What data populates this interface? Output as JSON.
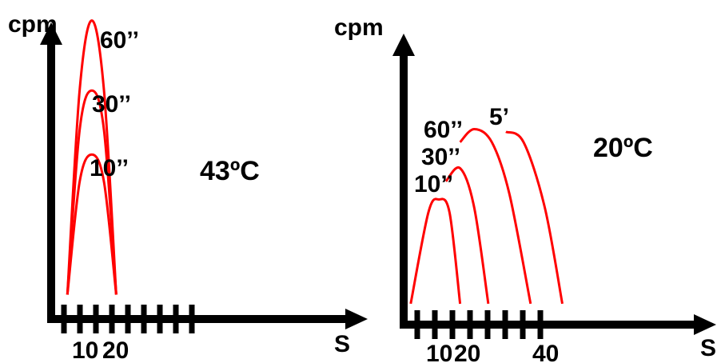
{
  "colors": {
    "axis": "#000000",
    "curve": "#ff0000",
    "background": "#ffffff"
  },
  "chart_data": [
    {
      "type": "line",
      "ylabel": "cpm",
      "xlabel": "S",
      "annotation": "43ºC",
      "x_tick_labels": [
        "10",
        "20"
      ],
      "xlim": [
        0,
        70
      ],
      "ylim": [
        0,
        100
      ],
      "grid": false,
      "series": [
        {
          "name": "60’’",
          "x": [
            4,
            7,
            10,
            13,
            16
          ],
          "y": [
            8,
            75,
            98,
            75,
            8
          ]
        },
        {
          "name": "30’’",
          "x": [
            4,
            7,
            10,
            13,
            16
          ],
          "y": [
            8,
            62,
            75,
            62,
            8
          ]
        },
        {
          "name": "10’’",
          "x": [
            4,
            7,
            10,
            13,
            16
          ],
          "y": [
            8,
            45,
            54,
            45,
            8
          ]
        }
      ]
    },
    {
      "type": "line",
      "ylabel": "cpm",
      "xlabel": "S",
      "annotation": "20ºC",
      "x_tick_labels": [
        "10",
        "20",
        "40"
      ],
      "xlim": [
        0,
        85
      ],
      "ylim": [
        0,
        100
      ],
      "grid": false,
      "series": [
        {
          "name": "10’’",
          "x": [
            2,
            7,
            10,
            13,
            16
          ],
          "y": [
            8,
            43,
            48,
            43,
            8
          ]
        },
        {
          "name": "30’’",
          "x": [
            12,
            16,
            20,
            24
          ],
          "y": [
            55,
            60,
            45,
            8
          ]
        },
        {
          "name": "60’’",
          "x": [
            16,
            20,
            25,
            30,
            36
          ],
          "y": [
            70,
            75,
            70,
            50,
            8
          ]
        },
        {
          "name": "5’",
          "x": [
            29,
            34,
            40,
            45
          ],
          "y": [
            74,
            70,
            45,
            8
          ]
        }
      ]
    }
  ]
}
